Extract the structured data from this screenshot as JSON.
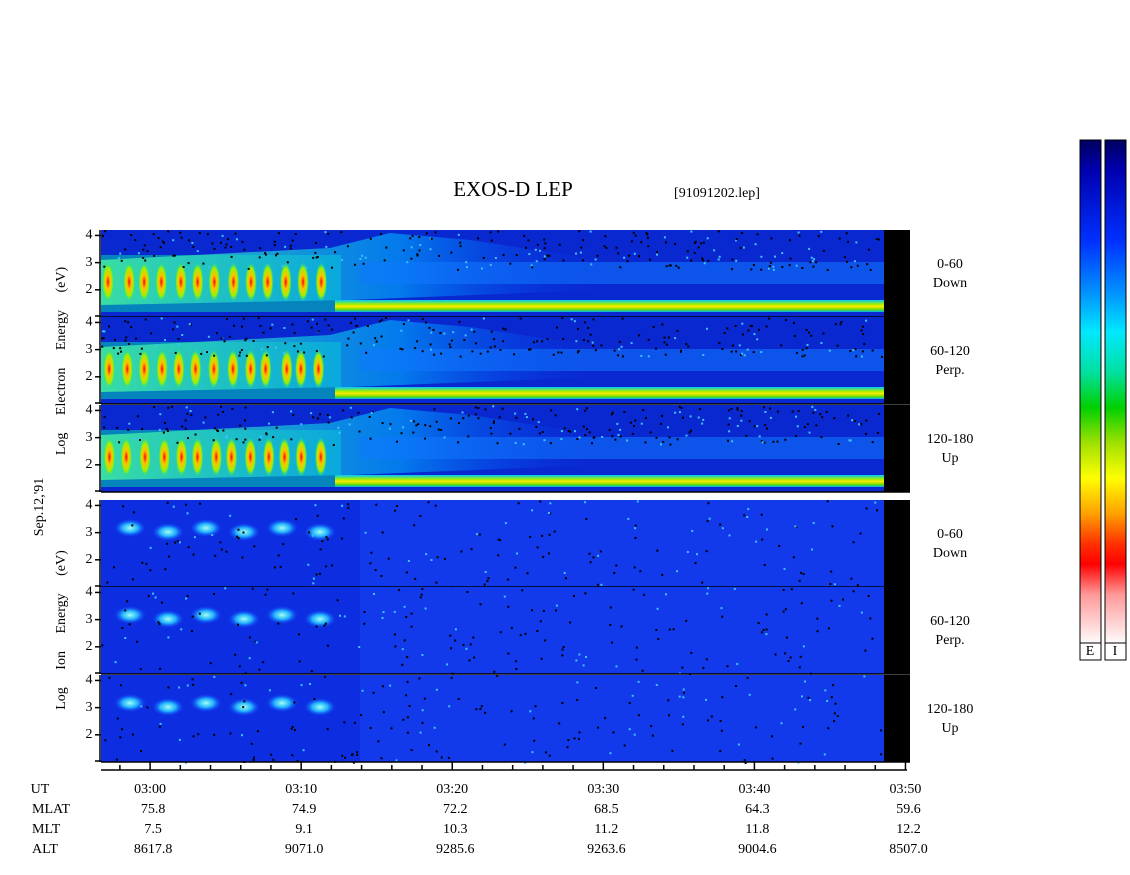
{
  "chart_data": {
    "type": "spectrogram",
    "title": "EXOS-D LEP",
    "subtitle": "[91091202.lep]",
    "date_label": "Sep.12,'91",
    "groups": [
      {
        "ylabel": "Log Electron Energy (eV)"
      },
      {
        "ylabel": "Log Ion Energy (eV)"
      }
    ],
    "panels": [
      {
        "angle": "0-60",
        "direction": "Down"
      },
      {
        "angle": "60-120",
        "direction": "Perp."
      },
      {
        "angle": "120-180",
        "direction": "Up"
      },
      {
        "angle": "0-60",
        "direction": "Down"
      },
      {
        "angle": "60-120",
        "direction": "Perp."
      },
      {
        "angle": "120-180",
        "direction": "Up"
      }
    ],
    "ylim": [
      1,
      4.2
    ],
    "yticks": [
      2,
      3,
      4
    ],
    "xlim": [
      176.75,
      230.3
    ],
    "xticks": [
      {
        "value": 180,
        "label": "03:00"
      },
      {
        "value": 190,
        "label": "03:10"
      },
      {
        "value": 200,
        "label": "03:20"
      },
      {
        "value": 210,
        "label": "03:30"
      },
      {
        "value": 220,
        "label": "03:40"
      },
      {
        "value": 230,
        "label": "03:50"
      }
    ],
    "x_row_label": "UT",
    "ephemeris": [
      {
        "label": "MLAT",
        "values": [
          "75.8",
          "74.9",
          "72.2",
          "68.5",
          "64.3",
          "59.6"
        ]
      },
      {
        "label": "MLT",
        "values": [
          "7.5",
          "9.1",
          "10.3",
          "11.2",
          "11.8",
          "12.2"
        ]
      },
      {
        "label": "ALT",
        "values": [
          "8617.8",
          "9071.0",
          "9285.6",
          "9263.6",
          "9004.6",
          "8507.0"
        ]
      }
    ],
    "colorbar_labels": [
      "E",
      "I"
    ]
  }
}
